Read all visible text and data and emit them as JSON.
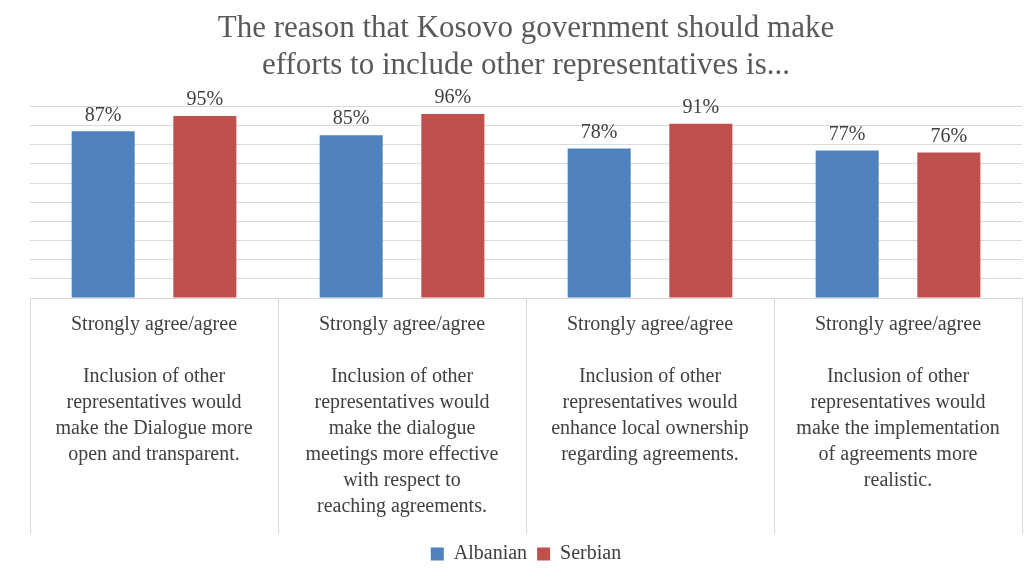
{
  "chart_data": {
    "type": "bar",
    "title": "The reason that Kosovo government should make efforts to include other representatives is...",
    "categories": [
      "Strongly agree/agree\nInclusion of other representatives would make the Dialogue more open and transparent.",
      "Strongly agree/agree\nInclusion of other representatives would make the dialogue meetings more effective with respect to reaching agreements.",
      "Strongly agree/agree\nInclusion of other representatives would enhance local ownership regarding agreements.",
      "Strongly agree/agree\nInclusion of other representatives would make the implementation of agreements more realistic."
    ],
    "series": [
      {
        "name": "Albanian",
        "color": "#4f81bd",
        "values": [
          87,
          85,
          78,
          77
        ],
        "value_labels": [
          "87%",
          "85%",
          "78%",
          "77%"
        ]
      },
      {
        "name": "Serbian",
        "color": "#c0504d",
        "values": [
          95,
          96,
          91,
          76
        ],
        "value_labels": [
          "95%",
          "96%",
          "91%",
          "76%"
        ]
      }
    ],
    "grid": "y",
    "tick_labels": "x",
    "legend": "bottom"
  }
}
